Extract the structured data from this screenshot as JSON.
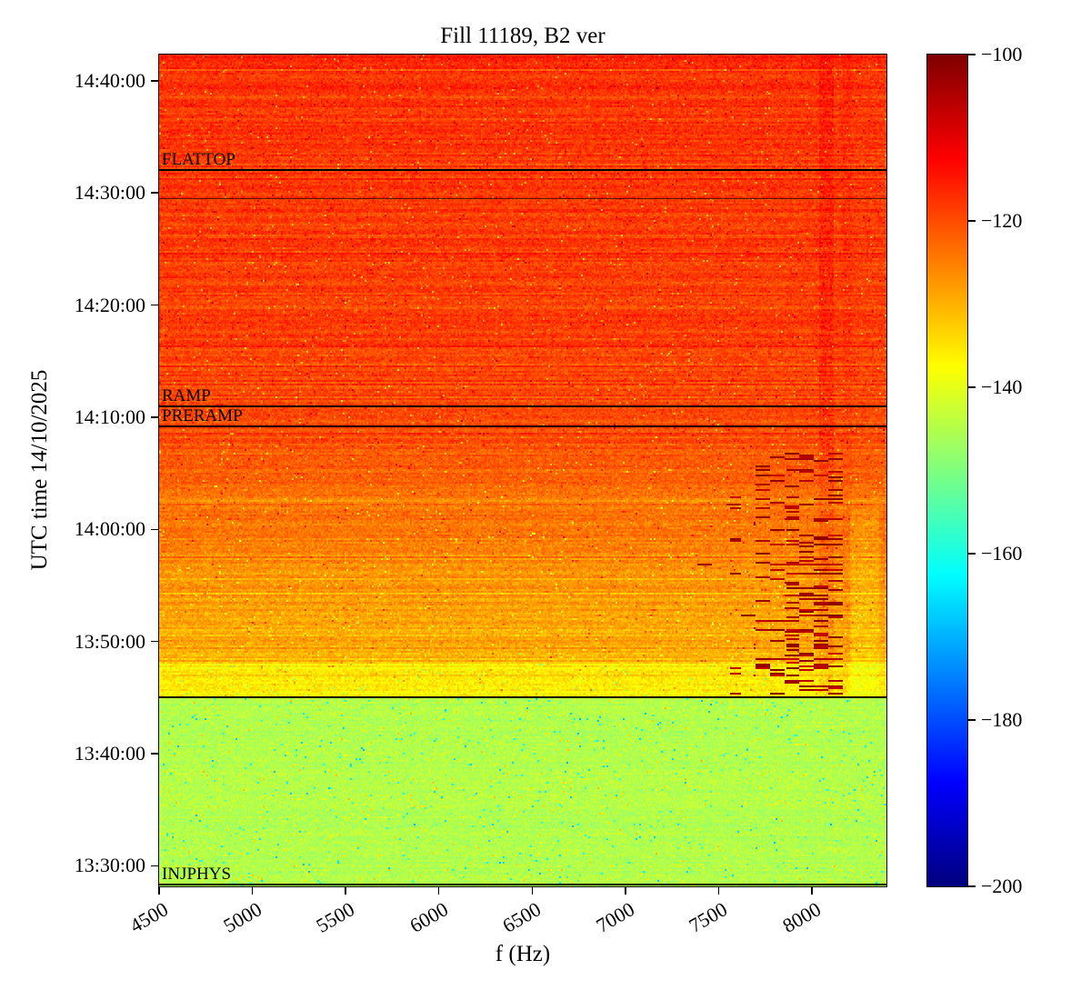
{
  "chart": {
    "title": "Fill 11189, B2 ver",
    "xlabel": "f (Hz)",
    "ylabel": "UTC time 14/10/2025"
  },
  "chart_data": {
    "type": "heatmap",
    "title": "Fill 11189, B2 ver",
    "xlabel": "f (Hz)",
    "ylabel": "UTC time 14/10/2025",
    "x_unit": "Hz",
    "x_range": [
      4500,
      8400
    ],
    "x_ticks": [
      4500,
      5000,
      5500,
      6000,
      6500,
      7000,
      7500,
      8000
    ],
    "y_time_range": [
      "13:28:10",
      "14:42:20"
    ],
    "y_ticks": [
      "14:40:00",
      "14:30:00",
      "14:20:00",
      "14:10:00",
      "14:00:00",
      "13:50:00",
      "13:40:00",
      "13:30:00"
    ],
    "colorbar": {
      "colormap": "jet",
      "min": -200,
      "max": -100,
      "tick_values": [
        -100,
        -120,
        -140,
        -160,
        -180,
        -200
      ],
      "tick_labels": [
        "−100",
        "−120",
        "−140",
        "−160",
        "−180",
        "−200"
      ]
    },
    "annotations": [
      {
        "label": "FLATTOP",
        "time": "14:32:00"
      },
      {
        "label": "RAMP",
        "time": "14:11:00"
      },
      {
        "label": "PRERAMP",
        "time": "14:09:10"
      },
      {
        "label": "INJPHYS",
        "time": "13:28:10"
      }
    ],
    "extra_lines": [
      {
        "time": "14:29:30",
        "style": "thin"
      },
      {
        "time": "13:45:00",
        "style": "boundary"
      }
    ],
    "regions": [
      {
        "name": "injection-plateau",
        "time_start": "13:28:10",
        "time_end": "13:45:00",
        "mean_level_db": -145
      },
      {
        "name": "yellow-transition-band",
        "time_start": "13:45:00",
        "time_end": "13:48:00",
        "mean_level_db": -136
      },
      {
        "name": "pre-ramp-warmup",
        "time_start": "13:48:00",
        "time_end": "14:10:00",
        "mean_level_db_start": -131,
        "mean_level_db_end": -119.5
      },
      {
        "name": "ramp-and-flattop",
        "time_start": "14:10:00",
        "time_end": "14:42:20",
        "mean_level_db": -118
      },
      {
        "name": "broadband-burst-streaks",
        "f_start": 7600,
        "f_end": 8150,
        "time_start": "13:45:00",
        "time_end": "14:07:00",
        "peak_level_db": -102
      },
      {
        "name": "faint-dark-vertical-line",
        "f_start": 8040,
        "f_end": 8120,
        "time_start": "13:45:00",
        "time_end": "14:42:20",
        "level_offset_db": 2
      }
    ]
  }
}
